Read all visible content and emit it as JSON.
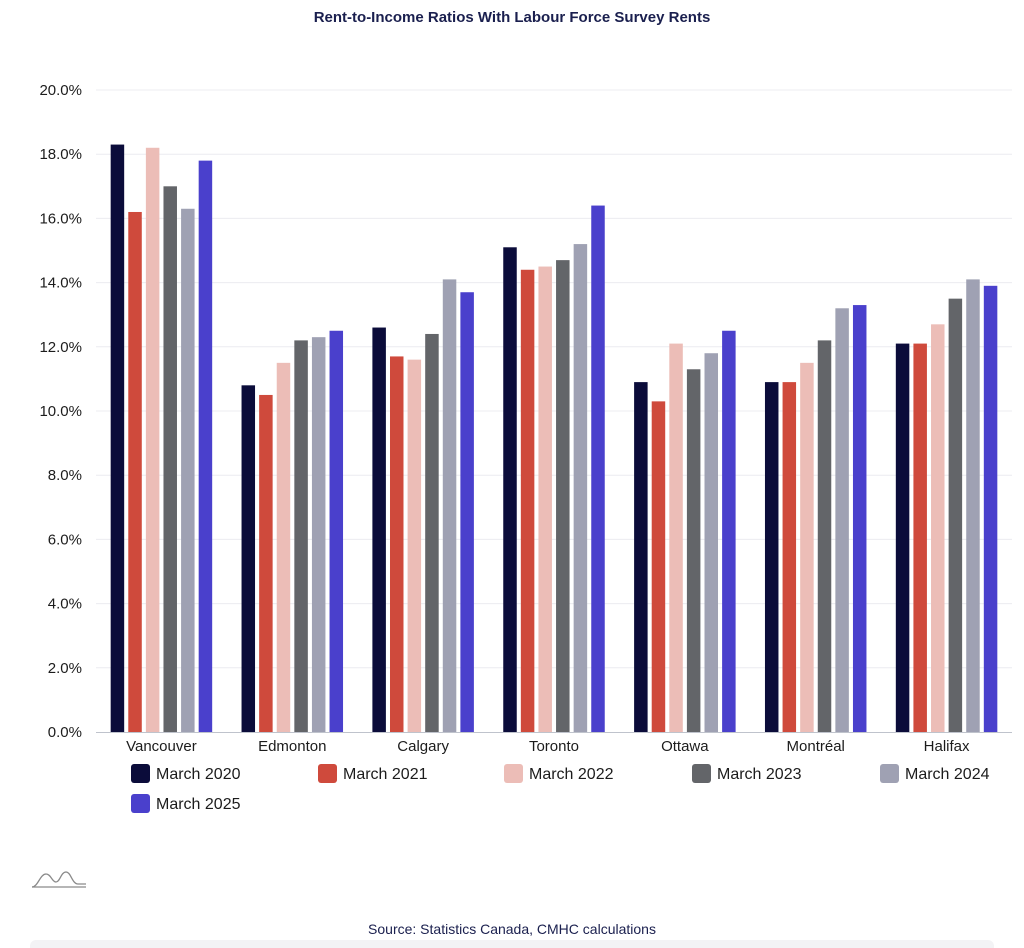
{
  "chart_data": {
    "type": "bar",
    "title": "Rent-to-Income Ratios With Labour Force Survey Rents",
    "xlabel": "",
    "ylabel": "",
    "ylim": [
      0,
      20
    ],
    "y_ticks": [
      "0.0%",
      "2.0%",
      "4.0%",
      "6.0%",
      "8.0%",
      "10.0%",
      "12.0%",
      "14.0%",
      "16.0%",
      "18.0%",
      "20.0%"
    ],
    "grid": true,
    "legend_position": "bottom",
    "categories": [
      "Vancouver",
      "Edmonton",
      "Calgary",
      "Toronto",
      "Ottawa",
      "Montréal",
      "Halifax"
    ],
    "series": [
      {
        "name": "March 2020",
        "color": "#0b0c3a",
        "values": [
          18.3,
          10.8,
          12.6,
          15.1,
          10.9,
          10.9,
          12.1
        ]
      },
      {
        "name": "March 2021",
        "color": "#cf4a3c",
        "values": [
          16.2,
          10.5,
          11.7,
          14.4,
          10.3,
          10.9,
          12.1
        ]
      },
      {
        "name": "March 2022",
        "color": "#ecbdb7",
        "values": [
          18.2,
          11.5,
          11.6,
          14.5,
          12.1,
          11.5,
          12.7
        ]
      },
      {
        "name": "March 2023",
        "color": "#636569",
        "values": [
          17.0,
          12.2,
          12.4,
          14.7,
          11.3,
          12.2,
          13.5
        ]
      },
      {
        "name": "March 2024",
        "color": "#9fa1b3",
        "values": [
          16.3,
          12.3,
          14.1,
          15.2,
          11.8,
          13.2,
          14.1
        ]
      },
      {
        "name": "March 2025",
        "color": "#4a40cc",
        "values": [
          17.8,
          12.5,
          13.7,
          16.4,
          12.5,
          13.3,
          13.9
        ]
      }
    ]
  },
  "footer": {
    "source": "Source: Statistics Canada, CMHC calculations",
    "logo_icon": "mountain-logo-icon"
  }
}
